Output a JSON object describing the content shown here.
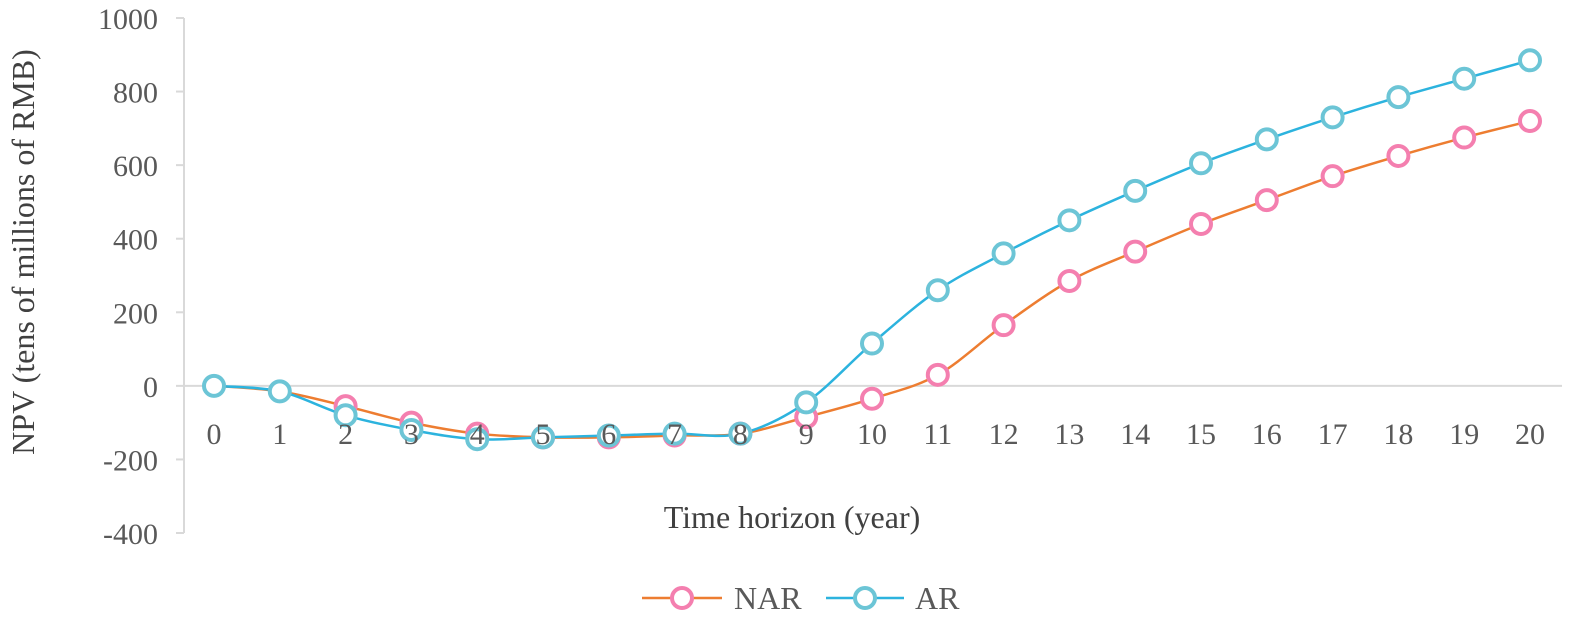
{
  "chart_data": {
    "type": "line",
    "title": "",
    "xlabel": "Time horizon (year)",
    "ylabel": "NPV (tens of millions of RMB)",
    "x": [
      0,
      1,
      2,
      3,
      4,
      5,
      6,
      7,
      8,
      9,
      10,
      11,
      12,
      13,
      14,
      15,
      16,
      17,
      18,
      19,
      20
    ],
    "x_tick_labels": [
      "0",
      "1",
      "2",
      "3",
      "4",
      "5",
      "6",
      "7",
      "8",
      "9",
      "10",
      "11",
      "12",
      "13",
      "14",
      "15",
      "16",
      "17",
      "18",
      "19",
      "20"
    ],
    "ylim": [
      -400,
      1000
    ],
    "y_ticks": [
      -400,
      -200,
      0,
      200,
      400,
      600,
      800,
      1000
    ],
    "y_tick_labels": [
      "-400",
      "-200",
      "0",
      "200",
      "400",
      "600",
      "800",
      "1000"
    ],
    "grid": false,
    "legend_position": "bottom",
    "series": [
      {
        "name": "NAR",
        "line_color": "#ED7D31",
        "marker_color": "#F47FAF",
        "marker_x": [
          2,
          3,
          4,
          5,
          6,
          7,
          8,
          9,
          10,
          11,
          12,
          13,
          14,
          15,
          16,
          17,
          18,
          19,
          20
        ],
        "values": [
          0,
          -15,
          -55,
          -100,
          -130,
          -140,
          -140,
          -135,
          -130,
          -85,
          -35,
          30,
          165,
          285,
          365,
          440,
          505,
          570,
          625,
          675,
          720
        ]
      },
      {
        "name": "AR",
        "line_color": "#2CB3DE",
        "marker_color": "#6CC5D6",
        "marker_x": [
          0,
          1,
          2,
          3,
          4,
          5,
          6,
          7,
          8,
          9,
          10,
          11,
          12,
          13,
          14,
          15,
          16,
          17,
          18,
          19,
          20
        ],
        "values": [
          0,
          -15,
          -80,
          -120,
          -145,
          -140,
          -135,
          -130,
          -130,
          -45,
          115,
          260,
          360,
          450,
          530,
          605,
          670,
          730,
          785,
          835,
          885
        ]
      }
    ]
  }
}
